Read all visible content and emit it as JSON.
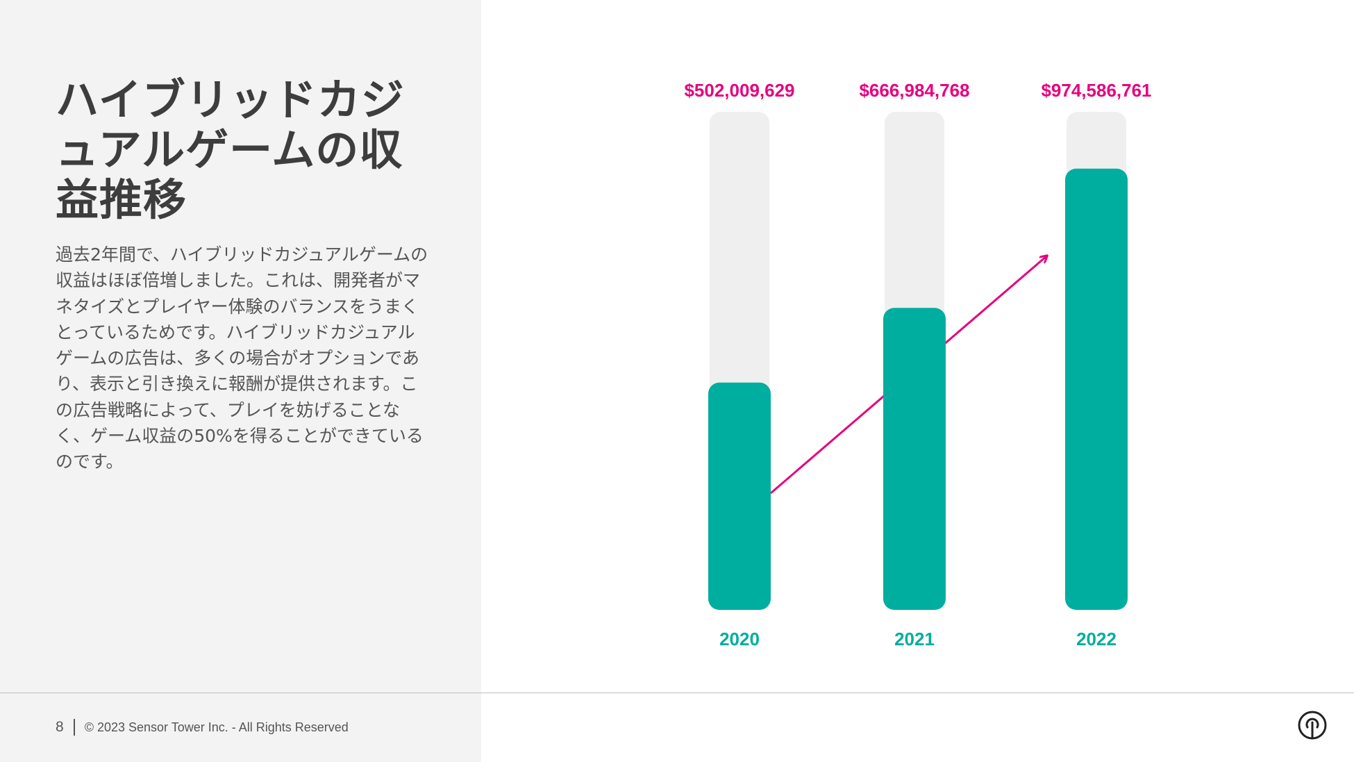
{
  "slide": {
    "title": "ハイブリッドカジュアルゲームの収益推移",
    "body": "過去2年間で、ハイブリッドカジュアルゲームの収益はほぼ倍増しました。これは、開発者がマネタイズとプレイヤー体験のバランスをうまくとっているためです。ハイブリッドカジュアルゲームの広告は、多くの場合がオプションであり、表示と引き換えに報酬が提供されます。この広告戦略によって、プレイを妨げることなく、ゲーム収益の50%を得ることができているのです。",
    "page_number": "8",
    "copyright": "© 2023 Sensor Tower Inc. - All Rights Reserved"
  },
  "logo": {
    "icon": "sensor-tower-logo-icon"
  },
  "colors": {
    "bar": "#00ae9f",
    "track": "#efefef",
    "accent": "#e6007e",
    "panel": "#f3f3f3"
  },
  "chart_data": {
    "type": "bar",
    "categories": [
      "2020",
      "2021",
      "2022"
    ],
    "values": [
      502009629,
      666984768,
      974586761
    ],
    "value_labels": [
      "$502,009,629",
      "$666,984,768",
      "$974,586,761"
    ],
    "ylim": [
      0,
      1100000000
    ],
    "trend_arrow": true,
    "grid": false,
    "legend": "none"
  }
}
